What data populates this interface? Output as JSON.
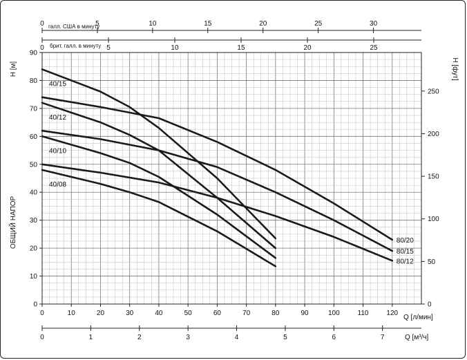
{
  "chart_data": {
    "type": "line",
    "title": "",
    "y_axis_left": {
      "label": "H [м]",
      "ticks": [
        0,
        10,
        20,
        30,
        40,
        50,
        60,
        70,
        80,
        90
      ],
      "range": [
        0,
        90
      ]
    },
    "y_axis_right": {
      "label": "H [фут]",
      "ticks": [
        0,
        50,
        100,
        150,
        200,
        250
      ]
    },
    "y_axis_title": "ОБЩИЙ НАПОР",
    "x_axis_primary": {
      "label": "Q [л/мин]",
      "ticks": [
        0,
        10,
        20,
        30,
        40,
        50,
        60,
        70,
        80,
        90,
        100,
        110,
        120
      ],
      "range": [
        0,
        130
      ]
    },
    "x_axis_m3h": {
      "label": "Q [м³/ч]",
      "ticks": [
        0,
        1,
        2,
        3,
        4,
        5,
        6,
        7
      ]
    },
    "x_axis_us_gal": {
      "label": "галл. США в минуту",
      "ticks": [
        0,
        5,
        10,
        15,
        20,
        25,
        30
      ]
    },
    "x_axis_imp_gal": {
      "label": "брит. галл. в минуту",
      "ticks": [
        0,
        5,
        10,
        15,
        20,
        25
      ]
    },
    "grid": true,
    "series": [
      {
        "name": "40/15",
        "x": [
          0,
          20,
          30,
          40,
          60,
          80
        ],
        "y": [
          84,
          76,
          70.5,
          63,
          45,
          23.5
        ]
      },
      {
        "name": "40/12",
        "x": [
          0,
          20,
          30,
          40,
          60,
          80
        ],
        "y": [
          72,
          65,
          60.5,
          55,
          38,
          20
        ]
      },
      {
        "name": "40/10",
        "x": [
          0,
          20,
          30,
          40,
          60,
          80
        ],
        "y": [
          60,
          54,
          50.5,
          45.5,
          32,
          16.5
        ]
      },
      {
        "name": "40/08",
        "x": [
          0,
          20,
          30,
          40,
          60,
          80
        ],
        "y": [
          48,
          43,
          40,
          36.5,
          26,
          13.5
        ]
      },
      {
        "name": "80/20",
        "x": [
          0,
          20,
          40,
          60,
          80,
          100,
          120
        ],
        "y": [
          74,
          70.5,
          66.5,
          58,
          48,
          36,
          23
        ]
      },
      {
        "name": "80/15",
        "x": [
          0,
          20,
          40,
          60,
          80,
          100,
          120
        ],
        "y": [
          62,
          59,
          55,
          49,
          40,
          30,
          19
        ]
      },
      {
        "name": "80/12",
        "x": [
          0,
          20,
          40,
          60,
          80,
          100,
          120
        ],
        "y": [
          50,
          47,
          43.5,
          38,
          31.5,
          24,
          15.5
        ]
      }
    ]
  }
}
